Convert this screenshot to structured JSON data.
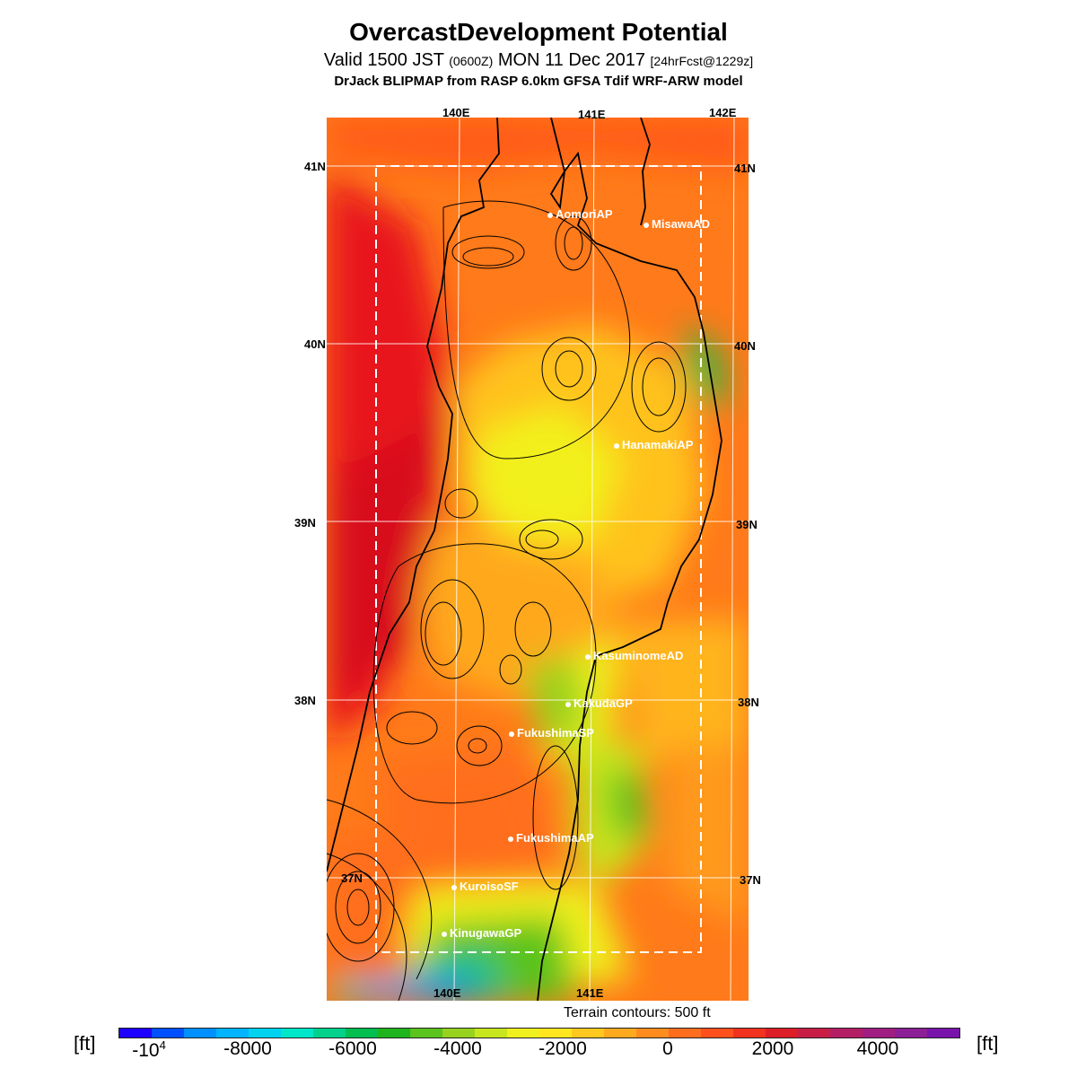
{
  "header": {
    "title": "OvercastDevelopment Potential",
    "subtitle_main": "Valid 1500 JST",
    "subtitle_utc": "(0600Z)",
    "subtitle_date": "MON 11 Dec 2017",
    "subtitle_fcst": "[24hrFcst@1229z]",
    "model_line": "DrJack BLIPMAP from RASP 6.0km GFSA Tdif WRF-ARW model"
  },
  "map": {
    "lon_labels_top": [
      "140E",
      "141E",
      "142E"
    ],
    "lon_labels_bottom": [
      "140E",
      "141E"
    ],
    "lat_labels_left": [
      "41N",
      "40N",
      "39N",
      "38N",
      "37N"
    ],
    "lat_labels_right": [
      "41N",
      "40N",
      "39N",
      "38N",
      "37N"
    ],
    "stations": [
      "AomoriAP",
      "MisawaAD",
      "HanamakiAP",
      "KasuminomeAD",
      "KakudaGP",
      "FukushimaSP",
      "FukushimaAP",
      "KuroisoSF",
      "KinugawaGP"
    ],
    "terrain_note": "Terrain contours: 500 ft"
  },
  "colorbar": {
    "unit_left": "[ft]",
    "unit_right": "[ft]",
    "tick_neg4": "4",
    "tick_labels": [
      "-8000",
      "-6000",
      "-4000",
      "-2000",
      "0",
      "2000",
      "4000"
    ],
    "colors": [
      "#1e00ff",
      "#0050ff",
      "#0090ff",
      "#00b4ff",
      "#00d2f0",
      "#00e6c8",
      "#00d28c",
      "#00be50",
      "#1eb41e",
      "#5ac31e",
      "#96d21e",
      "#c8e61e",
      "#f0f01e",
      "#ffe61e",
      "#ffc81e",
      "#ffaa1e",
      "#ff8c1e",
      "#ff6e1e",
      "#ff501e",
      "#f0321e",
      "#dc1e28",
      "#c81e46",
      "#b41e64",
      "#a01e82",
      "#8c1e96",
      "#7814aa"
    ]
  }
}
